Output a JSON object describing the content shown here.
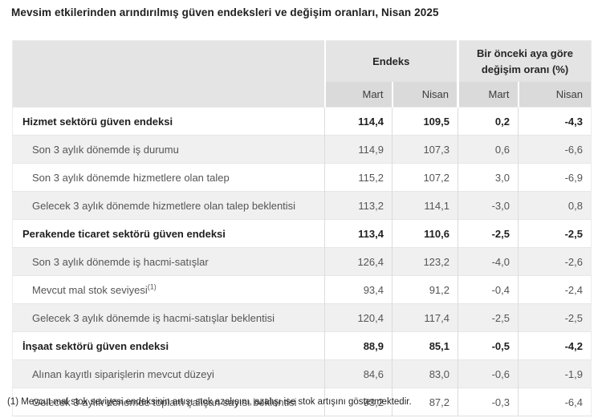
{
  "title": "Mevsim etkilerinden arındırılmış güven endeksleri ve değişim oranları, Nisan 2025",
  "table": {
    "col_groups": [
      {
        "label": "Endeks"
      },
      {
        "label": "Bir önceki aya göre değişim oranı (%)"
      }
    ],
    "sub_headers": [
      "Mart",
      "Nisan",
      "Mart",
      "Nisan"
    ],
    "rows": [
      {
        "label": "Hizmet sektörü güven endeksi",
        "bold": true,
        "values": [
          "114,4",
          "109,5",
          "0,2",
          "-4,3"
        ]
      },
      {
        "label": "Son 3 aylık dönemde iş durumu",
        "bold": false,
        "values": [
          "114,9",
          "107,3",
          "0,6",
          "-6,6"
        ]
      },
      {
        "label": "Son 3 aylık dönemde hizmetlere olan talep",
        "bold": false,
        "values": [
          "115,2",
          "107,2",
          "3,0",
          "-6,9"
        ]
      },
      {
        "label": "Gelecek 3 aylık dönemde hizmetlere olan talep beklentisi",
        "bold": false,
        "values": [
          "113,2",
          "114,1",
          "-3,0",
          "0,8"
        ]
      },
      {
        "label": "Perakende ticaret sektörü güven endeksi",
        "bold": true,
        "values": [
          "113,4",
          "110,6",
          "-2,5",
          "-2,5"
        ]
      },
      {
        "label": "Son 3 aylık dönemde iş hacmi-satışlar",
        "bold": false,
        "values": [
          "126,4",
          "123,2",
          "-4,0",
          "-2,6"
        ]
      },
      {
        "label": "Mevcut mal stok seviyesi",
        "sup": "(1)",
        "bold": false,
        "values": [
          "93,4",
          "91,2",
          "-0,4",
          "-2,4"
        ]
      },
      {
        "label": "Gelecek 3 aylık dönemde iş hacmi-satışlar beklentisi",
        "bold": false,
        "values": [
          "120,4",
          "117,4",
          "-2,5",
          "-2,5"
        ]
      },
      {
        "label": "İnşaat sektörü güven endeksi",
        "bold": true,
        "values": [
          "88,9",
          "85,1",
          "-0,5",
          "-4,2"
        ]
      },
      {
        "label": "Alınan kayıtlı siparişlerin mevcut düzeyi",
        "bold": false,
        "values": [
          "84,6",
          "83,0",
          "-0,6",
          "-1,9"
        ]
      },
      {
        "label": "Gelecek 3 aylık dönemde toplam çalışan sayısı beklentisi",
        "bold": false,
        "values": [
          "93,2",
          "87,2",
          "-0,3",
          "-6,4"
        ]
      }
    ]
  },
  "footnote": "(1) Mevcut mal stok seviyesi endeksinin artışı stok azalışını, azalışı ise stok artışını göstermektedir.",
  "colors": {
    "header_group_bg": "#e4e4e4",
    "header_sub_bg": "#dadada",
    "row_shaded_bg": "#f0f0f0",
    "row_plain_bg": "#ffffff",
    "border": "#dcdcdc",
    "text_dark": "#1f1f1f",
    "text_muted": "#555555"
  }
}
